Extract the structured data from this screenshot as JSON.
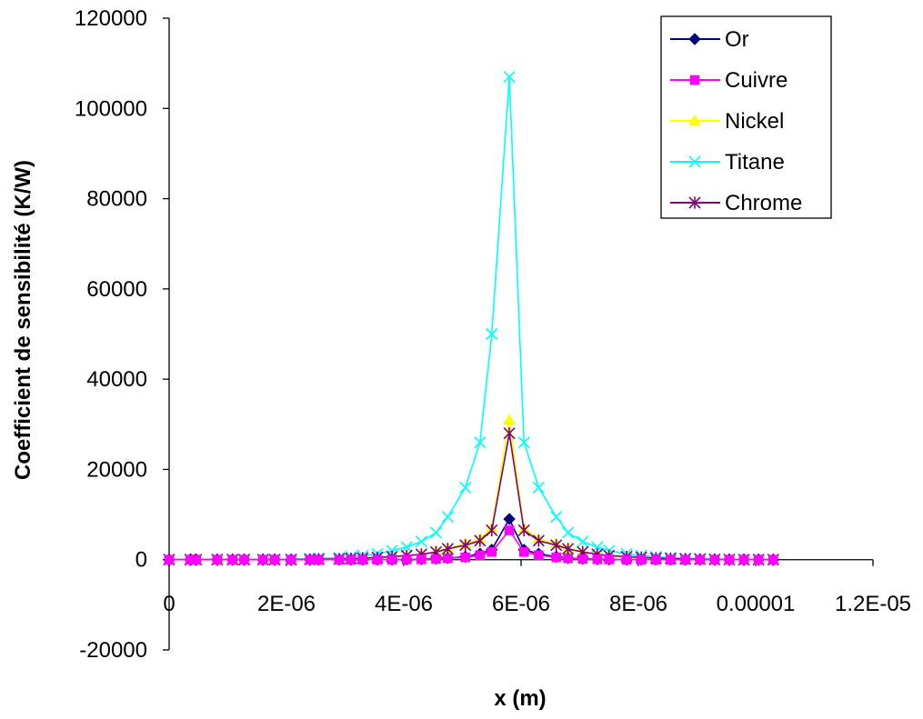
{
  "chart_data": {
    "type": "line",
    "title": "",
    "xlabel": "x (m)",
    "ylabel": "Coefficient de sensibilité (K/W)",
    "xlim": [
      0,
      1.2e-05
    ],
    "ylim": [
      -20000,
      120000
    ],
    "x_ticks": [
      {
        "value": 0,
        "label": "0"
      },
      {
        "value": 2e-06,
        "label": "2E-06"
      },
      {
        "value": 4e-06,
        "label": "4E-06"
      },
      {
        "value": 6e-06,
        "label": "6E-06"
      },
      {
        "value": 8e-06,
        "label": "8E-06"
      },
      {
        "value": 1e-05,
        "label": "0.00001"
      },
      {
        "value": 1.2e-05,
        "label": "1.2E-05"
      }
    ],
    "y_ticks": [
      {
        "value": -20000,
        "label": "-20000"
      },
      {
        "value": 0,
        "label": "0"
      },
      {
        "value": 20000,
        "label": "20000"
      },
      {
        "value": 40000,
        "label": "40000"
      },
      {
        "value": 60000,
        "label": "60000"
      },
      {
        "value": 80000,
        "label": "80000"
      },
      {
        "value": 100000,
        "label": "100000"
      },
      {
        "value": 120000,
        "label": "120000"
      }
    ],
    "grid": false,
    "legend_position": "top-right",
    "x": [
      0,
      3.6e-07,
      4.6e-07,
      8.2e-07,
      1.08e-06,
      1.28e-06,
      1.6e-06,
      1.8e-06,
      2.08e-06,
      2.4e-06,
      2.55e-06,
      2.9e-06,
      3.1e-06,
      3.3e-06,
      3.55e-06,
      3.8e-06,
      4.05e-06,
      4.3e-06,
      4.55e-06,
      4.75e-06,
      5.05e-06,
      5.3e-06,
      5.5e-06,
      5.8e-06,
      6.05e-06,
      6.3e-06,
      6.6e-06,
      6.8e-06,
      7.05e-06,
      7.3e-06,
      7.5e-06,
      7.8e-06,
      8.05e-06,
      8.3e-06,
      8.55e-06,
      8.8e-06,
      9.05e-06,
      9.3e-06,
      9.55e-06,
      9.8e-06,
      1.005e-05,
      1.03e-05
    ],
    "series": [
      {
        "name": "Or",
        "color": "#000080",
        "marker": "diamond",
        "values": [
          0,
          0,
          0,
          0,
          0,
          0,
          0,
          0,
          0,
          0,
          0,
          0,
          0,
          0,
          0,
          0,
          50,
          100,
          200,
          350,
          650,
          1300,
          2200,
          9000,
          2200,
          1300,
          650,
          350,
          200,
          100,
          50,
          0,
          0,
          0,
          0,
          0,
          0,
          0,
          0,
          0,
          0,
          0
        ]
      },
      {
        "name": "Cuivre",
        "color": "#ff00ff",
        "marker": "square",
        "values": [
          0,
          0,
          0,
          0,
          0,
          0,
          0,
          0,
          0,
          0,
          0,
          0,
          0,
          0,
          0,
          0,
          50,
          80,
          150,
          300,
          500,
          1000,
          1700,
          6500,
          1700,
          1000,
          500,
          300,
          150,
          80,
          50,
          0,
          0,
          0,
          0,
          0,
          0,
          0,
          0,
          0,
          0,
          0
        ]
      },
      {
        "name": "Nickel",
        "color": "#ffff00",
        "marker": "triangle",
        "values": [
          0,
          0,
          0,
          0,
          0,
          0,
          0,
          0,
          0,
          0,
          0,
          50,
          100,
          200,
          300,
          500,
          800,
          1200,
          1800,
          2500,
          3500,
          4600,
          7000,
          31000,
          7000,
          4600,
          3500,
          2500,
          1800,
          1200,
          800,
          500,
          300,
          200,
          100,
          50,
          0,
          0,
          0,
          0,
          0,
          0
        ]
      },
      {
        "name": "Titane",
        "color": "#00ffff",
        "marker": "x",
        "values": [
          0,
          0,
          0,
          0,
          0,
          0,
          0,
          50,
          100,
          200,
          300,
          450,
          650,
          900,
          1300,
          2000,
          2800,
          4000,
          6000,
          9500,
          16000,
          26000,
          50000,
          107000,
          26000,
          16000,
          9500,
          6000,
          4000,
          2800,
          2000,
          1300,
          900,
          650,
          450,
          300,
          200,
          100,
          50,
          0,
          0,
          0
        ]
      },
      {
        "name": "Chrome",
        "color": "#800080",
        "marker": "asterisk",
        "values": [
          0,
          0,
          0,
          0,
          0,
          0,
          0,
          0,
          0,
          50,
          100,
          150,
          250,
          350,
          500,
          650,
          900,
          1200,
          1700,
          2400,
          3200,
          4200,
          6500,
          28000,
          6500,
          4200,
          3200,
          2400,
          1700,
          1200,
          900,
          650,
          500,
          350,
          250,
          150,
          100,
          50,
          0,
          0,
          0,
          0
        ]
      }
    ]
  }
}
